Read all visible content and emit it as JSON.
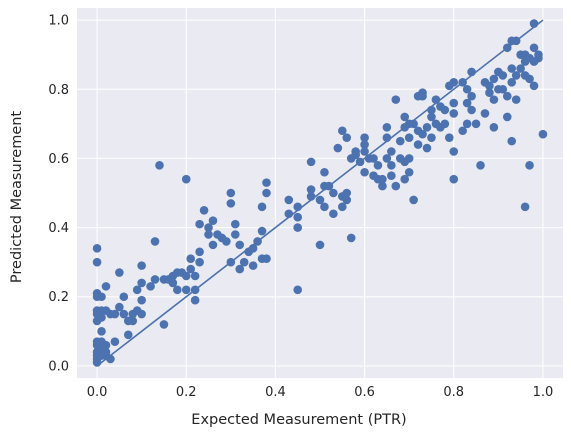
{
  "chart_data": {
    "type": "scatter",
    "xlabel": "Expected Measurement (PTR)",
    "ylabel": "Predicted Measurement",
    "xlim": [
      -0.045,
      1.045
    ],
    "ylim": [
      -0.035,
      1.035
    ],
    "xticks": [
      0.0,
      0.2,
      0.4,
      0.6,
      0.8,
      1.0
    ],
    "yticks": [
      0.0,
      0.2,
      0.4,
      0.6,
      0.8,
      1.0
    ],
    "xtick_labels": [
      "0.0",
      "0.2",
      "0.4",
      "0.6",
      "0.8",
      "1.0"
    ],
    "ytick_labels": [
      "0.0",
      "0.2",
      "0.4",
      "0.6",
      "0.8",
      "1.0"
    ],
    "grid": true,
    "background": "#eaeaf2",
    "grid_color": "#ffffff",
    "point_color": "#4c72b0",
    "line_color": "#4c72b0",
    "reference_line": {
      "x": [
        0,
        1
      ],
      "y": [
        0,
        1
      ]
    },
    "points": [
      [
        0.0,
        0.34
      ],
      [
        0.0,
        0.3
      ],
      [
        0.0,
        0.21
      ],
      [
        0.0,
        0.2
      ],
      [
        0.0,
        0.16
      ],
      [
        0.0,
        0.15
      ],
      [
        0.0,
        0.13
      ],
      [
        0.0,
        0.07
      ],
      [
        0.0,
        0.06
      ],
      [
        0.0,
        0.04
      ],
      [
        0.0,
        0.03
      ],
      [
        0.0,
        0.02
      ],
      [
        0.0,
        0.01
      ],
      [
        0.01,
        0.2
      ],
      [
        0.01,
        0.16
      ],
      [
        0.01,
        0.14
      ],
      [
        0.01,
        0.1
      ],
      [
        0.01,
        0.07
      ],
      [
        0.01,
        0.05
      ],
      [
        0.01,
        0.03
      ],
      [
        0.02,
        0.23
      ],
      [
        0.02,
        0.16
      ],
      [
        0.02,
        0.06
      ],
      [
        0.02,
        0.04
      ],
      [
        0.02,
        0.03
      ],
      [
        0.03,
        0.15
      ],
      [
        0.03,
        0.02
      ],
      [
        0.04,
        0.15
      ],
      [
        0.04,
        0.07
      ],
      [
        0.05,
        0.27
      ],
      [
        0.05,
        0.17
      ],
      [
        0.06,
        0.2
      ],
      [
        0.06,
        0.15
      ],
      [
        0.07,
        0.13
      ],
      [
        0.07,
        0.09
      ],
      [
        0.08,
        0.15
      ],
      [
        0.08,
        0.13
      ],
      [
        0.09,
        0.22
      ],
      [
        0.09,
        0.16
      ],
      [
        0.1,
        0.29
      ],
      [
        0.1,
        0.24
      ],
      [
        0.1,
        0.19
      ],
      [
        0.1,
        0.15
      ],
      [
        0.12,
        0.23
      ],
      [
        0.13,
        0.36
      ],
      [
        0.13,
        0.25
      ],
      [
        0.14,
        0.58
      ],
      [
        0.15,
        0.25
      ],
      [
        0.15,
        0.12
      ],
      [
        0.16,
        0.25
      ],
      [
        0.17,
        0.26
      ],
      [
        0.17,
        0.24
      ],
      [
        0.18,
        0.27
      ],
      [
        0.18,
        0.22
      ],
      [
        0.19,
        0.27
      ],
      [
        0.2,
        0.54
      ],
      [
        0.2,
        0.26
      ],
      [
        0.2,
        0.22
      ],
      [
        0.21,
        0.31
      ],
      [
        0.21,
        0.28
      ],
      [
        0.22,
        0.26
      ],
      [
        0.22,
        0.22
      ],
      [
        0.22,
        0.19
      ],
      [
        0.23,
        0.41
      ],
      [
        0.23,
        0.33
      ],
      [
        0.23,
        0.3
      ],
      [
        0.24,
        0.45
      ],
      [
        0.25,
        0.4
      ],
      [
        0.25,
        0.38
      ],
      [
        0.26,
        0.42
      ],
      [
        0.26,
        0.35
      ],
      [
        0.27,
        0.38
      ],
      [
        0.28,
        0.37
      ],
      [
        0.29,
        0.36
      ],
      [
        0.3,
        0.5
      ],
      [
        0.3,
        0.47
      ],
      [
        0.3,
        0.3
      ],
      [
        0.31,
        0.41
      ],
      [
        0.31,
        0.38
      ],
      [
        0.32,
        0.35
      ],
      [
        0.32,
        0.28
      ],
      [
        0.33,
        0.3
      ],
      [
        0.34,
        0.33
      ],
      [
        0.35,
        0.34
      ],
      [
        0.35,
        0.29
      ],
      [
        0.36,
        0.36
      ],
      [
        0.37,
        0.46
      ],
      [
        0.37,
        0.39
      ],
      [
        0.37,
        0.31
      ],
      [
        0.38,
        0.53
      ],
      [
        0.38,
        0.5
      ],
      [
        0.38,
        0.31
      ],
      [
        0.43,
        0.48
      ],
      [
        0.43,
        0.44
      ],
      [
        0.45,
        0.46
      ],
      [
        0.45,
        0.43
      ],
      [
        0.45,
        0.4
      ],
      [
        0.45,
        0.22
      ],
      [
        0.48,
        0.59
      ],
      [
        0.48,
        0.51
      ],
      [
        0.48,
        0.49
      ],
      [
        0.5,
        0.48
      ],
      [
        0.5,
        0.35
      ],
      [
        0.51,
        0.56
      ],
      [
        0.51,
        0.52
      ],
      [
        0.51,
        0.46
      ],
      [
        0.52,
        0.52
      ],
      [
        0.53,
        0.5
      ],
      [
        0.53,
        0.44
      ],
      [
        0.54,
        0.63
      ],
      [
        0.55,
        0.68
      ],
      [
        0.55,
        0.49
      ],
      [
        0.55,
        0.46
      ],
      [
        0.56,
        0.66
      ],
      [
        0.56,
        0.5
      ],
      [
        0.56,
        0.48
      ],
      [
        0.57,
        0.6
      ],
      [
        0.57,
        0.37
      ],
      [
        0.58,
        0.62
      ],
      [
        0.58,
        0.61
      ],
      [
        0.59,
        0.59
      ],
      [
        0.6,
        0.66
      ],
      [
        0.6,
        0.64
      ],
      [
        0.6,
        0.62
      ],
      [
        0.6,
        0.56
      ],
      [
        0.61,
        0.6
      ],
      [
        0.62,
        0.6
      ],
      [
        0.62,
        0.55
      ],
      [
        0.63,
        0.58
      ],
      [
        0.63,
        0.54
      ],
      [
        0.64,
        0.54
      ],
      [
        0.64,
        0.52
      ],
      [
        0.65,
        0.69
      ],
      [
        0.65,
        0.66
      ],
      [
        0.65,
        0.6
      ],
      [
        0.66,
        0.62
      ],
      [
        0.66,
        0.58
      ],
      [
        0.66,
        0.55
      ],
      [
        0.67,
        0.77
      ],
      [
        0.67,
        0.52
      ],
      [
        0.68,
        0.65
      ],
      [
        0.68,
        0.6
      ],
      [
        0.69,
        0.72
      ],
      [
        0.69,
        0.69
      ],
      [
        0.69,
        0.59
      ],
      [
        0.69,
        0.54
      ],
      [
        0.7,
        0.7
      ],
      [
        0.7,
        0.66
      ],
      [
        0.7,
        0.6
      ],
      [
        0.7,
        0.56
      ],
      [
        0.71,
        0.7
      ],
      [
        0.71,
        0.48
      ],
      [
        0.72,
        0.78
      ],
      [
        0.72,
        0.68
      ],
      [
        0.72,
        0.64
      ],
      [
        0.73,
        0.79
      ],
      [
        0.73,
        0.78
      ],
      [
        0.73,
        0.67
      ],
      [
        0.74,
        0.69
      ],
      [
        0.74,
        0.63
      ],
      [
        0.75,
        0.74
      ],
      [
        0.75,
        0.72
      ],
      [
        0.75,
        0.66
      ],
      [
        0.76,
        0.77
      ],
      [
        0.76,
        0.7
      ],
      [
        0.77,
        0.75
      ],
      [
        0.77,
        0.69
      ],
      [
        0.78,
        0.74
      ],
      [
        0.78,
        0.7
      ],
      [
        0.79,
        0.81
      ],
      [
        0.79,
        0.66
      ],
      [
        0.8,
        0.82
      ],
      [
        0.8,
        0.76
      ],
      [
        0.8,
        0.73
      ],
      [
        0.8,
        0.62
      ],
      [
        0.8,
        0.54
      ],
      [
        0.82,
        0.82
      ],
      [
        0.82,
        0.68
      ],
      [
        0.83,
        0.8
      ],
      [
        0.83,
        0.76
      ],
      [
        0.83,
        0.7
      ],
      [
        0.84,
        0.85
      ],
      [
        0.84,
        0.78
      ],
      [
        0.84,
        0.74
      ],
      [
        0.85,
        0.7
      ],
      [
        0.86,
        0.58
      ],
      [
        0.87,
        0.82
      ],
      [
        0.87,
        0.73
      ],
      [
        0.88,
        0.81
      ],
      [
        0.88,
        0.79
      ],
      [
        0.89,
        0.83
      ],
      [
        0.89,
        0.77
      ],
      [
        0.89,
        0.69
      ],
      [
        0.9,
        0.85
      ],
      [
        0.9,
        0.8
      ],
      [
        0.91,
        0.84
      ],
      [
        0.91,
        0.8
      ],
      [
        0.92,
        0.92
      ],
      [
        0.92,
        0.78
      ],
      [
        0.92,
        0.72
      ],
      [
        0.93,
        0.94
      ],
      [
        0.93,
        0.86
      ],
      [
        0.93,
        0.82
      ],
      [
        0.93,
        0.65
      ],
      [
        0.94,
        0.94
      ],
      [
        0.94,
        0.84
      ],
      [
        0.94,
        0.77
      ],
      [
        0.95,
        0.9
      ],
      [
        0.95,
        0.86
      ],
      [
        0.96,
        0.9
      ],
      [
        0.96,
        0.88
      ],
      [
        0.96,
        0.84
      ],
      [
        0.96,
        0.46
      ],
      [
        0.97,
        0.89
      ],
      [
        0.97,
        0.83
      ],
      [
        0.97,
        0.58
      ],
      [
        0.98,
        0.99
      ],
      [
        0.98,
        0.92
      ],
      [
        0.98,
        0.88
      ],
      [
        0.98,
        0.81
      ],
      [
        0.99,
        0.9
      ],
      [
        0.99,
        0.89
      ],
      [
        1.0,
        0.67
      ]
    ]
  }
}
